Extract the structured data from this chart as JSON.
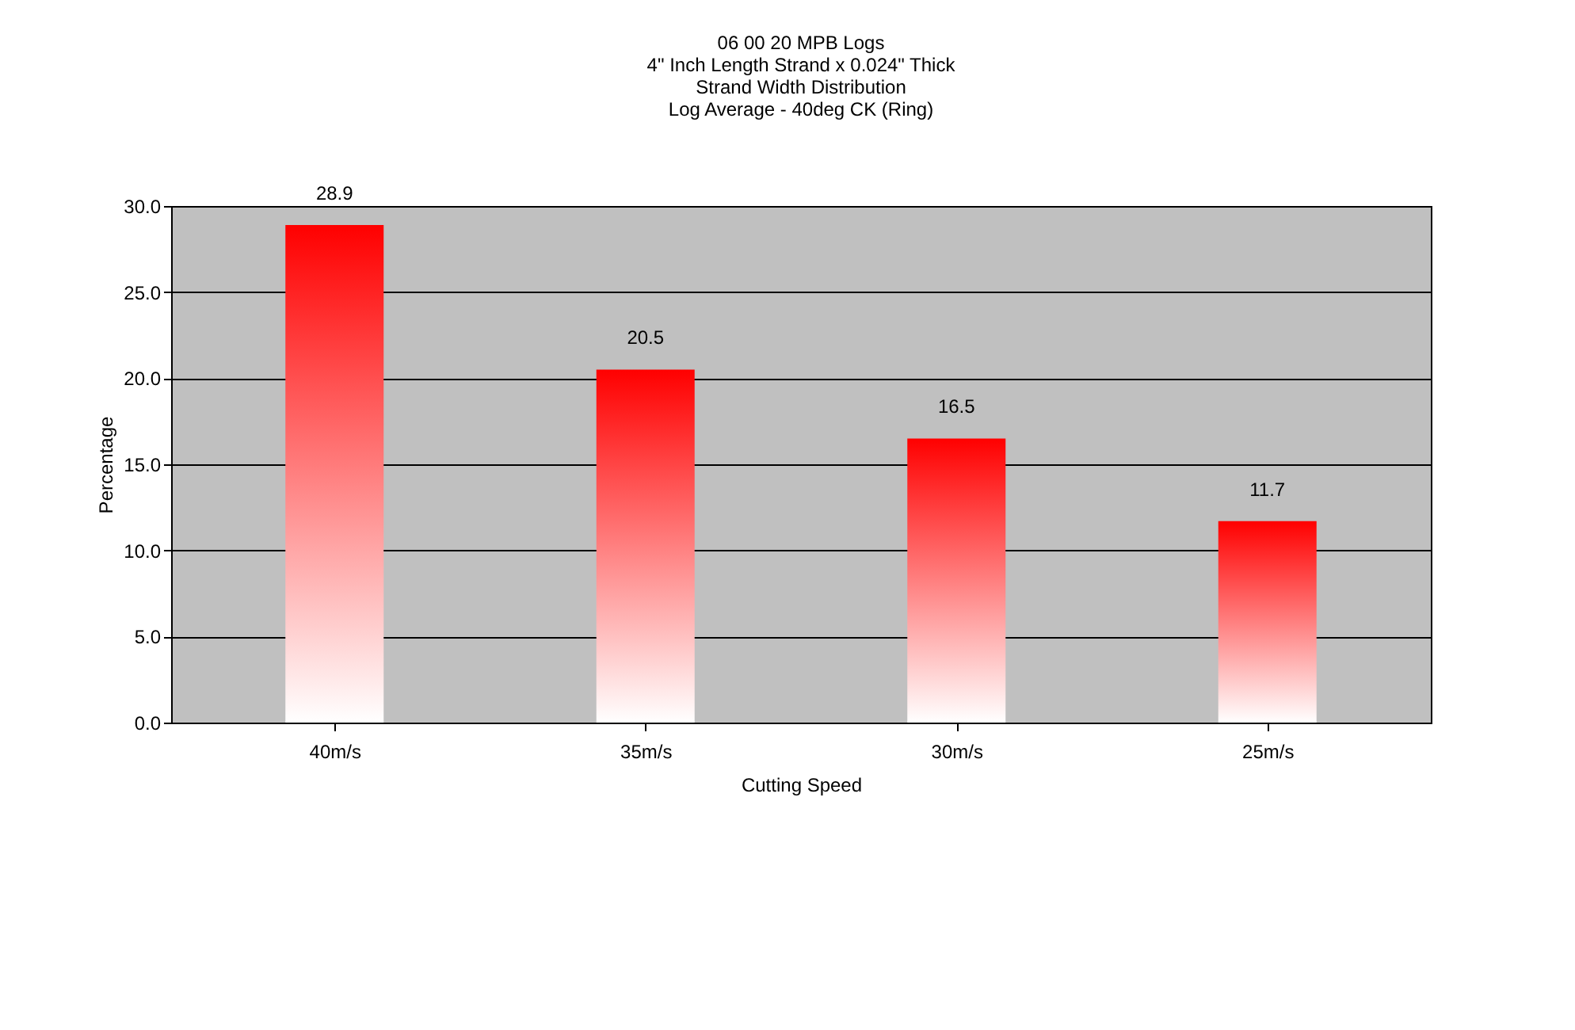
{
  "chart_data": {
    "type": "bar",
    "title": [
      "06 00 20  MPB Logs",
      "4\" Inch Length Strand  x 0.024\" Thick",
      "Strand Width Distribution",
      "Log Average  - 40deg CK (Ring)"
    ],
    "xlabel": "Cutting Speed",
    "ylabel": "Percentage",
    "categories": [
      "40m/s",
      "35m/s",
      "30m/s",
      "25m/s"
    ],
    "values": [
      28.9,
      20.5,
      16.5,
      11.7
    ],
    "color": "#ff0000",
    "ylim": [
      0,
      30
    ],
    "yticks": [
      {
        "value": 0,
        "label": "0.0"
      },
      {
        "value": 5,
        "label": "5.0"
      },
      {
        "value": 10,
        "label": "10.0"
      },
      {
        "value": 15,
        "label": "15.0"
      },
      {
        "value": 20,
        "label": "20.0"
      },
      {
        "value": 25,
        "label": "25.0"
      },
      {
        "value": 30,
        "label": "30.0"
      }
    ],
    "grid": "y",
    "data_labels": true
  }
}
